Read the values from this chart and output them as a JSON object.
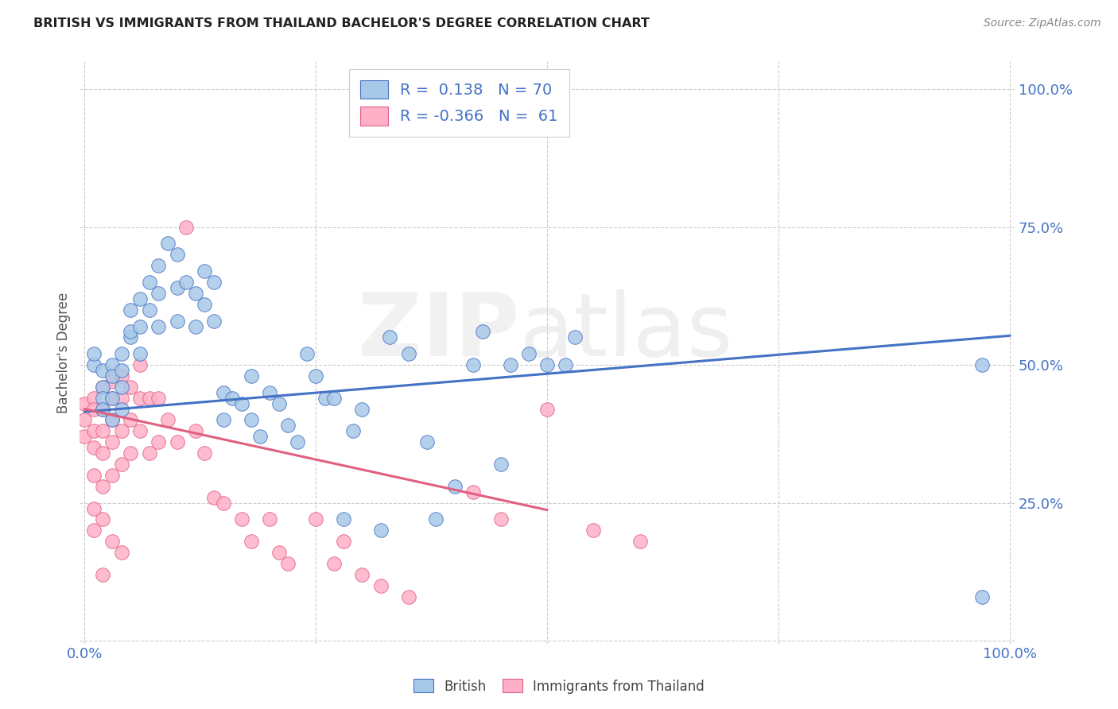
{
  "title": "BRITISH VS IMMIGRANTS FROM THAILAND BACHELOR'S DEGREE CORRELATION CHART",
  "source": "Source: ZipAtlas.com",
  "ylabel": "Bachelor's Degree",
  "ytick_labels": [
    "",
    "25.0%",
    "50.0%",
    "75.0%",
    "100.0%"
  ],
  "ytick_values": [
    0.0,
    0.25,
    0.5,
    0.75,
    1.0
  ],
  "xtick_values": [
    0.0,
    0.25,
    0.5,
    0.75,
    1.0
  ],
  "xtick_labels": [
    "0.0%",
    "",
    "",
    "",
    "100.0%"
  ],
  "legend_british_R": "0.138",
  "legend_british_N": "70",
  "legend_thai_R": "-0.366",
  "legend_thai_N": "61",
  "british_color": "#A8C8E8",
  "thai_color": "#FFB0C8",
  "british_line_color": "#4472C4",
  "thai_line_color": "#E06080",
  "background_color": "#FFFFFF",
  "blue_label_color": "#4472C4",
  "title_color": "#222222",
  "source_color": "#888888",
  "ylabel_color": "#555555",
  "british_line_slope": 0.138,
  "british_line_intercept": 0.415,
  "thai_line_slope": -0.366,
  "thai_line_intercept": 0.42,
  "british_scatter_x": [
    0.01,
    0.01,
    0.02,
    0.02,
    0.02,
    0.02,
    0.03,
    0.03,
    0.03,
    0.03,
    0.04,
    0.04,
    0.04,
    0.04,
    0.05,
    0.05,
    0.05,
    0.06,
    0.06,
    0.06,
    0.07,
    0.07,
    0.08,
    0.08,
    0.08,
    0.09,
    0.1,
    0.1,
    0.1,
    0.11,
    0.12,
    0.12,
    0.13,
    0.13,
    0.14,
    0.14,
    0.15,
    0.15,
    0.16,
    0.17,
    0.18,
    0.18,
    0.19,
    0.2,
    0.21,
    0.22,
    0.23,
    0.24,
    0.25,
    0.26,
    0.27,
    0.28,
    0.29,
    0.3,
    0.32,
    0.33,
    0.35,
    0.37,
    0.38,
    0.4,
    0.42,
    0.43,
    0.45,
    0.46,
    0.48,
    0.5,
    0.52,
    0.53,
    0.97,
    0.97
  ],
  "british_scatter_y": [
    0.5,
    0.52,
    0.49,
    0.46,
    0.44,
    0.42,
    0.5,
    0.48,
    0.44,
    0.4,
    0.52,
    0.49,
    0.46,
    0.42,
    0.55,
    0.6,
    0.56,
    0.62,
    0.57,
    0.52,
    0.65,
    0.6,
    0.68,
    0.63,
    0.57,
    0.72,
    0.7,
    0.64,
    0.58,
    0.65,
    0.63,
    0.57,
    0.67,
    0.61,
    0.65,
    0.58,
    0.45,
    0.4,
    0.44,
    0.43,
    0.48,
    0.4,
    0.37,
    0.45,
    0.43,
    0.39,
    0.36,
    0.52,
    0.48,
    0.44,
    0.44,
    0.22,
    0.38,
    0.42,
    0.2,
    0.55,
    0.52,
    0.36,
    0.22,
    0.28,
    0.5,
    0.56,
    0.32,
    0.5,
    0.52,
    0.5,
    0.5,
    0.55,
    0.5,
    0.08
  ],
  "thai_scatter_x": [
    0.0,
    0.0,
    0.0,
    0.01,
    0.01,
    0.01,
    0.01,
    0.01,
    0.01,
    0.01,
    0.02,
    0.02,
    0.02,
    0.02,
    0.02,
    0.02,
    0.02,
    0.03,
    0.03,
    0.03,
    0.03,
    0.03,
    0.03,
    0.04,
    0.04,
    0.04,
    0.04,
    0.04,
    0.05,
    0.05,
    0.05,
    0.06,
    0.06,
    0.06,
    0.07,
    0.07,
    0.08,
    0.08,
    0.09,
    0.1,
    0.11,
    0.12,
    0.13,
    0.14,
    0.15,
    0.17,
    0.18,
    0.2,
    0.21,
    0.22,
    0.25,
    0.27,
    0.28,
    0.3,
    0.32,
    0.35,
    0.42,
    0.45,
    0.5,
    0.55,
    0.6
  ],
  "thai_scatter_y": [
    0.43,
    0.4,
    0.37,
    0.44,
    0.42,
    0.38,
    0.35,
    0.3,
    0.24,
    0.2,
    0.46,
    0.42,
    0.38,
    0.34,
    0.28,
    0.22,
    0.12,
    0.47,
    0.44,
    0.4,
    0.36,
    0.3,
    0.18,
    0.48,
    0.44,
    0.38,
    0.32,
    0.16,
    0.46,
    0.4,
    0.34,
    0.5,
    0.44,
    0.38,
    0.44,
    0.34,
    0.44,
    0.36,
    0.4,
    0.36,
    0.75,
    0.38,
    0.34,
    0.26,
    0.25,
    0.22,
    0.18,
    0.22,
    0.16,
    0.14,
    0.22,
    0.14,
    0.18,
    0.12,
    0.1,
    0.08,
    0.27,
    0.22,
    0.42,
    0.2,
    0.18
  ]
}
